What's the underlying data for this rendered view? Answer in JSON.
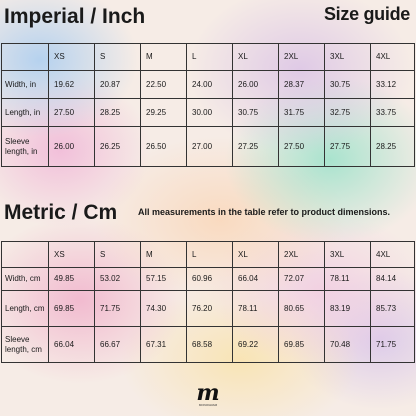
{
  "header": {
    "title": "Imperial / Inch",
    "badge": "Size guide"
  },
  "sizes": [
    "XS",
    "S",
    "M",
    "L",
    "XL",
    "2XL",
    "3XL",
    "4XL"
  ],
  "imperial": {
    "rows": [
      {
        "label": "Width, in",
        "values": [
          "19.62",
          "20.87",
          "22.50",
          "24.00",
          "26.00",
          "28.37",
          "30.75",
          "33.12"
        ]
      },
      {
        "label": "Length, in",
        "values": [
          "27.50",
          "28.25",
          "29.25",
          "30.00",
          "30.75",
          "31.75",
          "32.75",
          "33.75"
        ]
      },
      {
        "label": "Sleeve length, in",
        "values": [
          "26.00",
          "26.25",
          "26.50",
          "27.00",
          "27.25",
          "27.50",
          "27.75",
          "28.25"
        ]
      }
    ]
  },
  "metric": {
    "title": "Metric / Cm",
    "note": "All measurements in the table refer to product dimensions.",
    "rows": [
      {
        "label": "Width, cm",
        "values": [
          "49.85",
          "53.02",
          "57.15",
          "60.96",
          "66.04",
          "72.07",
          "78.11",
          "84.14"
        ]
      },
      {
        "label": "Length, cm",
        "values": [
          "69.85",
          "71.75",
          "74.30",
          "76.20",
          "78.11",
          "80.65",
          "83.19",
          "85.73"
        ]
      },
      {
        "label": "Sleeve length, cm",
        "values": [
          "66.04",
          "66.67",
          "67.31",
          "68.58",
          "69.22",
          "69.85",
          "70.48",
          "71.75"
        ]
      }
    ]
  },
  "logo": {
    "letter": "m",
    "caption": "MONOGRAM"
  }
}
